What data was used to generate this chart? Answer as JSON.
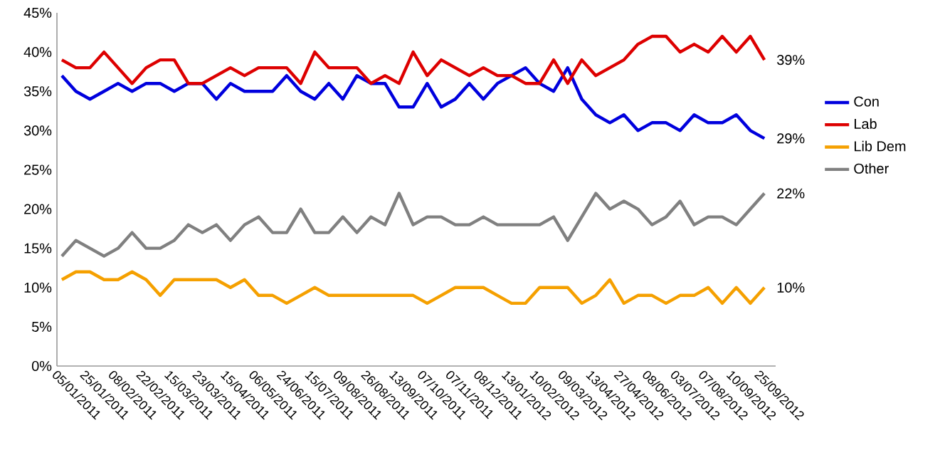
{
  "chart_data": {
    "type": "line",
    "categories": [
      "05/01/2011",
      null,
      "25/01/2011",
      null,
      "08/02/2011",
      null,
      "22/02/2011",
      null,
      "15/03/2011",
      null,
      "23/03/2011",
      null,
      "15/04/2011",
      null,
      "06/05/2011",
      null,
      "24/06/2011",
      null,
      "15/07/2011",
      null,
      "09/08/2011",
      null,
      "26/08/2011",
      null,
      "13/09/2011",
      null,
      "07/10/2011",
      null,
      "07/11/2011",
      null,
      "08/12/2011",
      null,
      "13/01/2012",
      null,
      "10/02/2012",
      null,
      "09/03/2012",
      null,
      "13/04/2012",
      null,
      "27/04/2012",
      null,
      "08/06/2012",
      null,
      "03/07/2012",
      null,
      "07/08/2012",
      null,
      "10/09/2012",
      null,
      "25/09/2012"
    ],
    "series": [
      {
        "name": "Con",
        "color": "#0000dd",
        "values": [
          37,
          35,
          34,
          35,
          36,
          35,
          36,
          36,
          35,
          36,
          36,
          34,
          36,
          35,
          35,
          35,
          37,
          35,
          34,
          36,
          34,
          37,
          36,
          36,
          33,
          33,
          36,
          33,
          34,
          36,
          34,
          36,
          37,
          38,
          36,
          35,
          38,
          34,
          32,
          31,
          32,
          30,
          31,
          31,
          30,
          32,
          31,
          31,
          32,
          30,
          29
        ],
        "value_labels": [
          null,
          null,
          null,
          null,
          null,
          null,
          null,
          null,
          null,
          null,
          null,
          null,
          null,
          null,
          null,
          null,
          null,
          null,
          null,
          null,
          null,
          null,
          null,
          null,
          null,
          null,
          null,
          null,
          null,
          null,
          null,
          null,
          null,
          null,
          null,
          null,
          null,
          null,
          null,
          null,
          null,
          null,
          null,
          null,
          null,
          null,
          null,
          null,
          null,
          null,
          "29%"
        ]
      },
      {
        "name": "Lab",
        "color": "#dd0000",
        "values": [
          39,
          38,
          38,
          40,
          38,
          36,
          38,
          39,
          39,
          36,
          36,
          37,
          38,
          37,
          38,
          38,
          38,
          36,
          40,
          38,
          38,
          38,
          36,
          37,
          36,
          40,
          37,
          39,
          38,
          37,
          38,
          37,
          37,
          36,
          36,
          39,
          36,
          39,
          37,
          38,
          39,
          41,
          42,
          42,
          40,
          41,
          40,
          42,
          40,
          42,
          39
        ],
        "value_labels": [
          null,
          null,
          null,
          null,
          null,
          null,
          null,
          null,
          null,
          null,
          null,
          null,
          null,
          null,
          null,
          null,
          null,
          null,
          null,
          null,
          null,
          null,
          null,
          null,
          null,
          null,
          null,
          null,
          null,
          null,
          null,
          null,
          null,
          null,
          null,
          null,
          null,
          null,
          null,
          null,
          null,
          null,
          null,
          null,
          null,
          null,
          null,
          null,
          null,
          null,
          "39%"
        ]
      },
      {
        "name": "Lib Dem",
        "color": "#f5a000",
        "values": [
          11,
          12,
          12,
          11,
          11,
          12,
          11,
          9,
          11,
          11,
          11,
          11,
          10,
          11,
          9,
          9,
          8,
          9,
          10,
          9,
          9,
          9,
          9,
          9,
          9,
          9,
          8,
          9,
          10,
          10,
          10,
          9,
          8,
          8,
          10,
          10,
          10,
          8,
          9,
          11,
          8,
          9,
          9,
          8,
          9,
          9,
          10,
          8,
          10,
          8,
          10
        ],
        "value_labels": [
          null,
          null,
          null,
          null,
          null,
          null,
          null,
          null,
          null,
          null,
          null,
          null,
          null,
          null,
          null,
          null,
          null,
          null,
          null,
          null,
          null,
          null,
          null,
          null,
          null,
          null,
          null,
          null,
          null,
          null,
          null,
          null,
          null,
          null,
          null,
          null,
          null,
          null,
          null,
          null,
          null,
          null,
          null,
          null,
          null,
          null,
          null,
          null,
          null,
          null,
          "10%"
        ]
      },
      {
        "name": "Other",
        "color": "#808080",
        "values": [
          14,
          16,
          15,
          14,
          15,
          17,
          15,
          15,
          16,
          18,
          17,
          18,
          16,
          18,
          19,
          17,
          17,
          20,
          17,
          17,
          19,
          17,
          19,
          18,
          22,
          18,
          19,
          19,
          18,
          18,
          19,
          18,
          18,
          18,
          18,
          19,
          16,
          19,
          22,
          20,
          21,
          20,
          18,
          19,
          21,
          18,
          19,
          19,
          18,
          20,
          22
        ],
        "value_labels": [
          null,
          null,
          null,
          null,
          null,
          null,
          null,
          null,
          null,
          null,
          null,
          null,
          null,
          null,
          null,
          null,
          null,
          null,
          null,
          null,
          null,
          null,
          null,
          null,
          null,
          null,
          null,
          null,
          null,
          null,
          null,
          null,
          null,
          null,
          null,
          null,
          null,
          null,
          null,
          null,
          null,
          null,
          null,
          null,
          null,
          null,
          null,
          null,
          null,
          null,
          "22%"
        ]
      }
    ],
    "ylim": [
      0,
      45
    ],
    "yticks": [
      {
        "value": 0,
        "label": "0%"
      },
      {
        "value": 5,
        "label": "5%"
      },
      {
        "value": 10,
        "label": "10%"
      },
      {
        "value": 15,
        "label": "15%"
      },
      {
        "value": 20,
        "label": "20%"
      },
      {
        "value": 25,
        "label": "25%"
      },
      {
        "value": 30,
        "label": "30%"
      },
      {
        "value": 35,
        "label": "35%"
      },
      {
        "value": 40,
        "label": "40%"
      },
      {
        "value": 45,
        "label": "45%"
      }
    ],
    "grid": false,
    "legend": "right",
    "marker": "none",
    "line_style": "solid"
  }
}
